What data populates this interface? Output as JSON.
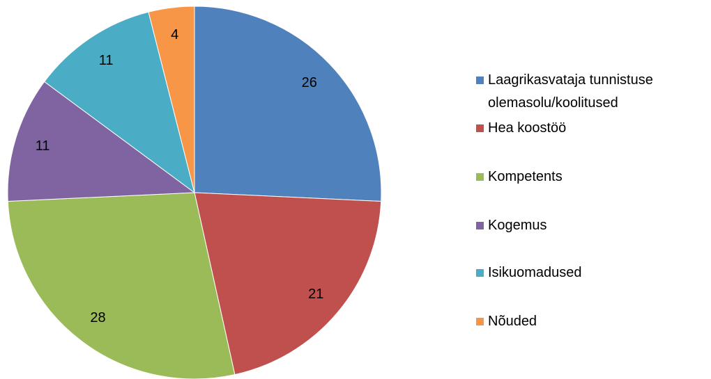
{
  "chart_data": {
    "type": "pie",
    "categories": [
      "Laagrikasvataja tunnistuse olemasolu/koolitused",
      "Hea koostöö",
      "Kompetents",
      "Kogemus",
      "Isikuomadused",
      "Nõuded"
    ],
    "values": [
      26,
      21,
      28,
      11,
      11,
      4
    ],
    "colors": [
      "#4f81bd",
      "#c0504d",
      "#9bbb59",
      "#8064a2",
      "#4bacc6",
      "#f79646"
    ],
    "legend": "right"
  }
}
